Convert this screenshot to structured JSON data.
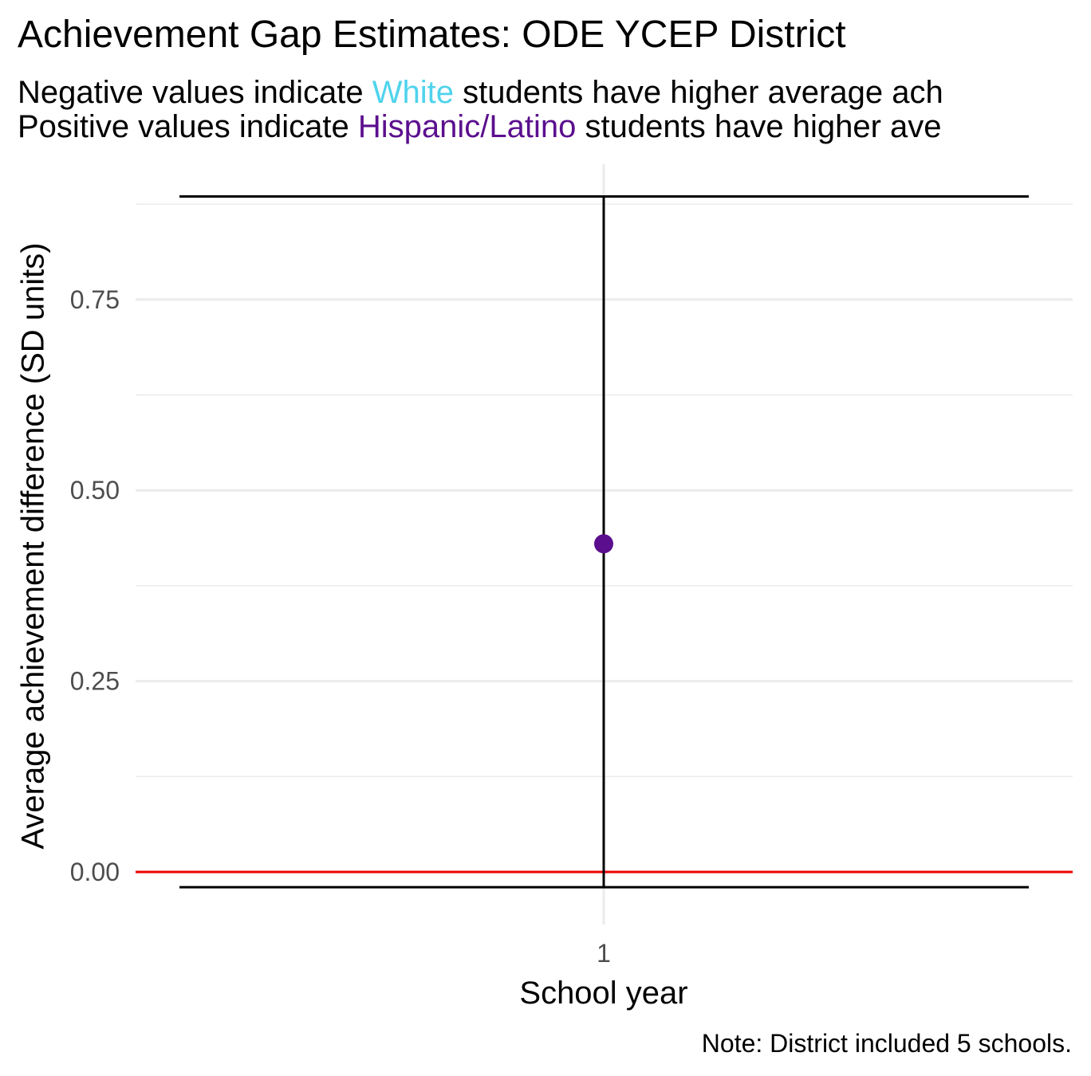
{
  "chart_data": {
    "type": "scatter",
    "title": "Achievement Gap Estimates: ODE YCEP District",
    "subtitle_lines": [
      {
        "prefix": "Negative values indicate ",
        "highlight": "White",
        "highlight_color": "#4fd3ec",
        "suffix": " students have higher average ach"
      },
      {
        "prefix": "Positive values indicate ",
        "highlight": "Hispanic/Latino",
        "highlight_color": "#5b0f8e",
        "suffix": " students have higher ave"
      }
    ],
    "xlabel": "School year",
    "ylabel": "Average achievement difference (SD units)",
    "caption": "Note: District included 5 schools.",
    "x_categories": [
      "1"
    ],
    "y_ticks": [
      0.0,
      0.25,
      0.5,
      0.75
    ],
    "y_tick_labels": [
      "0.00",
      "0.25",
      "0.50",
      "0.75"
    ],
    "ylim": [
      -0.05,
      0.92
    ],
    "grid": true,
    "reference_line": {
      "y": 0,
      "color": "#ee0000"
    },
    "points": [
      {
        "x": "1",
        "y": 0.43,
        "ci_low": -0.02,
        "ci_high": 0.885,
        "color": "#5b0f8e"
      }
    ]
  }
}
